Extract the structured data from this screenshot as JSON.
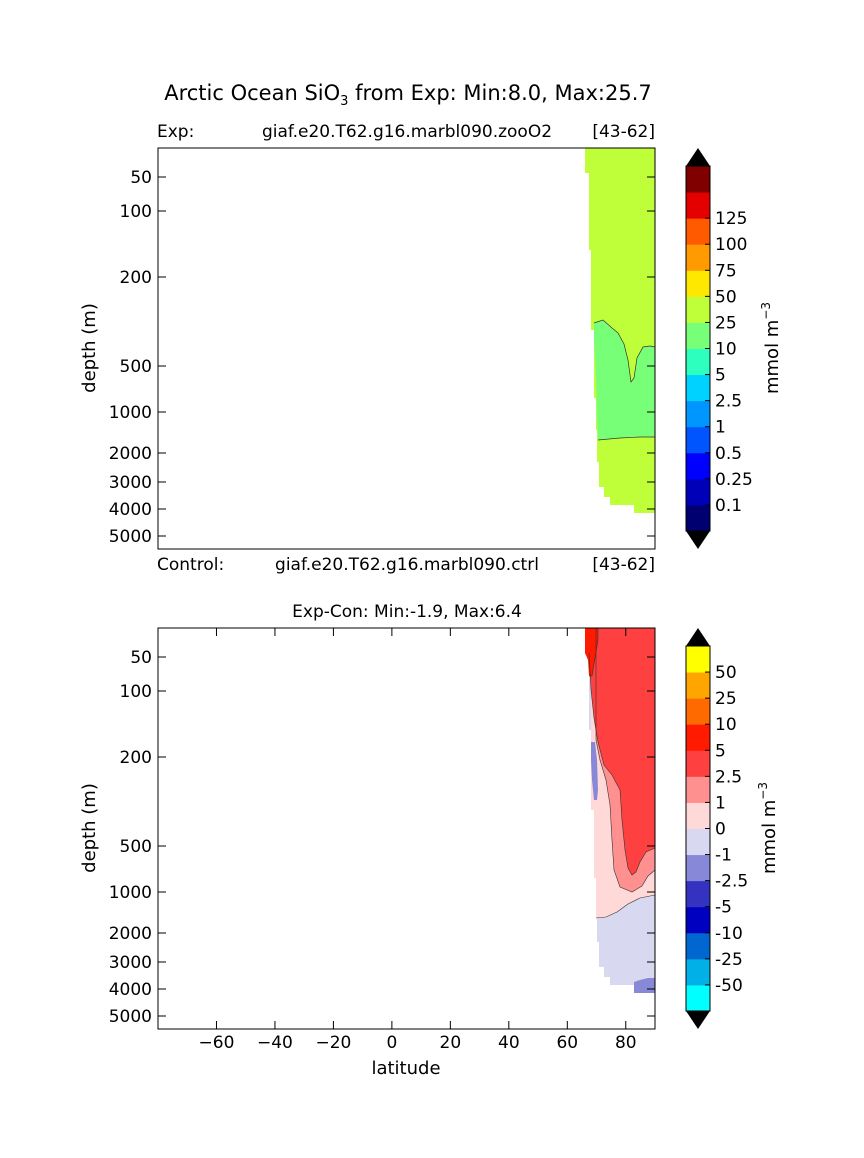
{
  "figure": {
    "title_prefix": "Arctic Ocean SiO",
    "title_sub": "3",
    "title_suffix": " from Exp: Min:8.0, Max:25.7",
    "exp_label": "Exp:",
    "exp_case": "giaf.e20.T62.g16.marbl090.zooO2",
    "exp_years": "[43-62]",
    "ctrl_label": "Control:",
    "ctrl_case": "giaf.e20.T62.g16.marbl090.ctrl",
    "ctrl_years": "[43-62]",
    "diff_title": "Exp-Con: Min:-1.9, Max:6.4"
  },
  "colors": {
    "abs_levels": [
      "#000070",
      "#0000b8",
      "#0000ff",
      "#0055ff",
      "#0096ff",
      "#00d2ff",
      "#2dffbe",
      "#78ff78",
      "#bfff3a",
      "#ffe800",
      "#ff9a00",
      "#ff5a00",
      "#e50000",
      "#800000"
    ],
    "diff_levels": [
      "#00ffff",
      "#00b0e6",
      "#0066d0",
      "#0000c0",
      "#3333c0",
      "#8888d8",
      "#d8d8f0",
      "#ffd8d8",
      "#ff9090",
      "#ff4040",
      "#ff1a00",
      "#ff6a00",
      "#ffa500",
      "#ffff00"
    ]
  },
  "chart_data": [
    {
      "type": "heatmap",
      "panel": "experiment",
      "xlabel": "",
      "ylabel": "depth (m)",
      "xlim": [
        -80,
        90
      ],
      "y_scale": "depth-stretched (log-like)",
      "yticks": [
        50,
        100,
        200,
        500,
        1000,
        2000,
        3000,
        4000,
        5000
      ],
      "colorbar": {
        "label": "mmol m",
        "label_sup": "−3",
        "ticks": [
          "0.1",
          "0.25",
          "0.5",
          "1",
          "2.5",
          "5",
          "10",
          "25",
          "50",
          "75",
          "100",
          "125"
        ],
        "extend": "both"
      },
      "regions": [
        {
          "range": "10-25",
          "latitude": [
            64,
            90
          ],
          "depth_m": [
            10,
            5000
          ]
        },
        {
          "range": "5-10",
          "latitude": [
            69,
            90
          ],
          "depth_m": [
            300,
            1700
          ]
        }
      ]
    },
    {
      "type": "heatmap",
      "panel": "difference",
      "xlabel": "latitude",
      "ylabel": "depth (m)",
      "xlim": [
        -80,
        90
      ],
      "xticks": [
        -60,
        -40,
        -20,
        0,
        20,
        40,
        60,
        80
      ],
      "y_scale": "depth-stretched (log-like)",
      "yticks": [
        50,
        100,
        200,
        500,
        1000,
        2000,
        3000,
        4000,
        5000
      ],
      "colorbar": {
        "label": "mmol m",
        "label_sup": "−3",
        "ticks": [
          "-50",
          "-25",
          "-10",
          "-5",
          "-2.5",
          "-1",
          "0",
          "1",
          "2.5",
          "5",
          "10",
          "25",
          "50"
        ],
        "extend": "both"
      },
      "regions": [
        {
          "range": "2.5-5",
          "latitude": [
            67,
            90
          ],
          "depth_m": [
            10,
            700
          ]
        },
        {
          "range": "5-10",
          "latitude": [
            64,
            68
          ],
          "depth_m": [
            10,
            80
          ]
        },
        {
          "range": "1-2.5",
          "latitude": [
            71,
            90
          ],
          "depth_m": [
            200,
            1200
          ]
        },
        {
          "range": "0-1",
          "latitude": [
            69,
            90
          ],
          "depth_m": [
            300,
            1500
          ]
        },
        {
          "range": "-1-0",
          "latitude": [
            69,
            90
          ],
          "depth_m": [
            1300,
            5000
          ]
        },
        {
          "range": "-2.5--1",
          "latitude": [
            83,
            90
          ],
          "depth_m": [
            3600,
            5000
          ]
        }
      ]
    }
  ]
}
